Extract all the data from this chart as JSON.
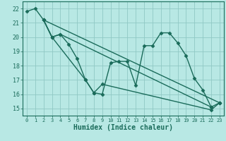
{
  "title": "",
  "xlabel": "Humidex (Indice chaleur)",
  "ylabel": "",
  "bg_color": "#b8e8e4",
  "grid_color": "#90c8c4",
  "line_color": "#1a6b5a",
  "marker": "D",
  "markersize": 2.5,
  "linewidth": 1.0,
  "xlim": [
    -0.5,
    23.5
  ],
  "ylim": [
    14.5,
    22.5
  ],
  "xticks": [
    0,
    1,
    2,
    3,
    4,
    5,
    6,
    7,
    8,
    9,
    10,
    11,
    12,
    13,
    14,
    15,
    16,
    17,
    18,
    19,
    20,
    21,
    22,
    23
  ],
  "yticks": [
    15,
    16,
    17,
    18,
    19,
    20,
    21,
    22
  ],
  "lines": [
    {
      "x": [
        0,
        1,
        2,
        3,
        4,
        22
      ],
      "y": [
        21.8,
        22.0,
        21.2,
        20.0,
        20.2,
        15.1
      ]
    },
    {
      "x": [
        2,
        3,
        4,
        5,
        6,
        7,
        8,
        9,
        10,
        11,
        12,
        13,
        14,
        15,
        16,
        17,
        18,
        19,
        20,
        21,
        22,
        23
      ],
      "y": [
        21.2,
        20.0,
        20.2,
        19.5,
        18.5,
        17.0,
        16.1,
        16.0,
        18.2,
        18.3,
        18.3,
        16.6,
        19.4,
        19.4,
        20.3,
        20.3,
        19.6,
        18.7,
        17.1,
        16.3,
        15.1,
        15.4
      ]
    },
    {
      "x": [
        2,
        3,
        7,
        8,
        9,
        22,
        23
      ],
      "y": [
        21.2,
        20.0,
        17.0,
        16.1,
        16.7,
        14.9,
        15.4
      ]
    },
    {
      "x": [
        2,
        23
      ],
      "y": [
        21.2,
        15.4
      ]
    }
  ]
}
